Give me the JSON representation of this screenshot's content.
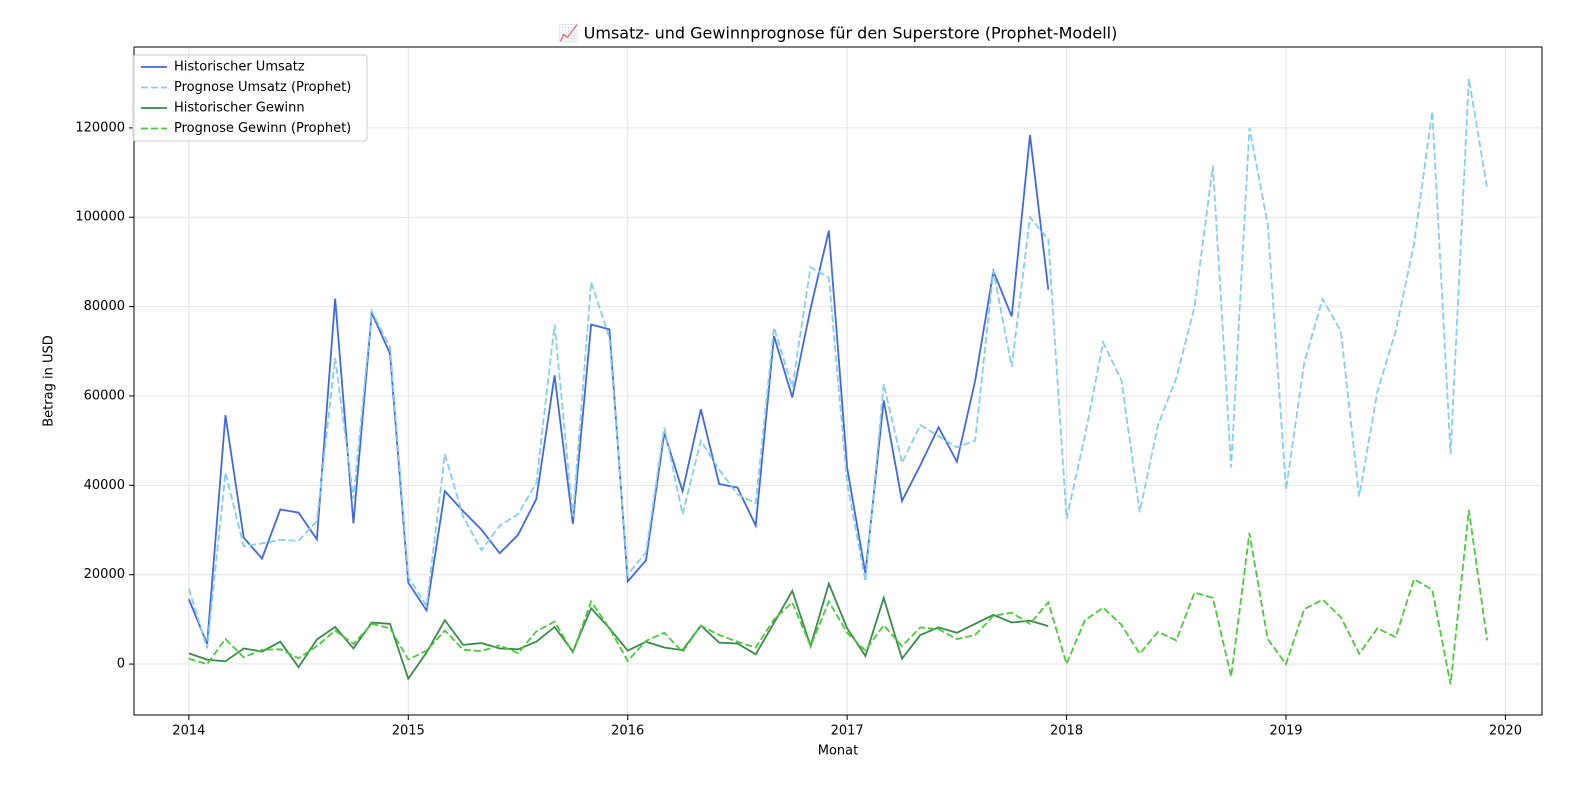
{
  "chart_data": {
    "type": "line",
    "title": "📈 Umsatz- und Gewinnprognose für den Superstore (Prophet-Modell)",
    "x_label": "Monat",
    "y_label": "Betrag in USD",
    "x": [
      "2014-01",
      "2014-02",
      "2014-03",
      "2014-04",
      "2014-05",
      "2014-06",
      "2014-07",
      "2014-08",
      "2014-09",
      "2014-10",
      "2014-11",
      "2014-12",
      "2015-01",
      "2015-02",
      "2015-03",
      "2015-04",
      "2015-05",
      "2015-06",
      "2015-07",
      "2015-08",
      "2015-09",
      "2015-10",
      "2015-11",
      "2015-12",
      "2016-01",
      "2016-02",
      "2016-03",
      "2016-04",
      "2016-05",
      "2016-06",
      "2016-07",
      "2016-08",
      "2016-09",
      "2016-10",
      "2016-11",
      "2016-12",
      "2017-01",
      "2017-02",
      "2017-03",
      "2017-04",
      "2017-05",
      "2017-06",
      "2017-07",
      "2017-08",
      "2017-09",
      "2017-10",
      "2017-11",
      "2017-12",
      "2018-01",
      "2018-02",
      "2018-03",
      "2018-04",
      "2018-05",
      "2018-06",
      "2018-07",
      "2018-08",
      "2018-09",
      "2018-10",
      "2018-11",
      "2018-12",
      "2019-01",
      "2019-02",
      "2019-03",
      "2019-04",
      "2019-05",
      "2019-06",
      "2019-07",
      "2019-08",
      "2019-09",
      "2019-10",
      "2019-11",
      "2019-12"
    ],
    "series": [
      {
        "name": "Historischer Umsatz",
        "color": "#4169e1",
        "linestyle": "solid",
        "values": [
          14500,
          4500,
          55700,
          28300,
          23600,
          34600,
          33900,
          27900,
          81800,
          31500,
          78600,
          69500,
          18200,
          12000,
          38700,
          34200,
          30100,
          24800,
          28900,
          36900,
          64600,
          31400,
          76000,
          74900,
          18500,
          23200,
          51700,
          38700,
          57000,
          40300,
          39500,
          31000,
          73400,
          59700,
          79600,
          97000,
          43900,
          20300,
          59000,
          36500,
          44500,
          53000,
          45300,
          63400,
          87900,
          77800,
          118400,
          83800,
          null,
          null,
          null,
          null,
          null,
          null,
          null,
          null,
          null,
          null,
          null,
          null,
          null,
          null,
          null,
          null,
          null,
          null,
          null,
          null,
          null,
          null,
          null,
          null
        ]
      },
      {
        "name": "Prognose Umsatz (Prophet)",
        "color": "#87ceeb",
        "linestyle": "dashed",
        "values": [
          16900,
          3500,
          42800,
          26400,
          27000,
          27800,
          27600,
          32000,
          68500,
          37000,
          79000,
          71000,
          19500,
          13000,
          47000,
          33000,
          25500,
          31000,
          33500,
          40500,
          76000,
          33000,
          85500,
          73000,
          20000,
          25000,
          53000,
          33500,
          50000,
          43500,
          38000,
          36000,
          75300,
          62000,
          88800,
          86500,
          40500,
          18500,
          62700,
          45000,
          53500,
          51000,
          48500,
          50000,
          88000,
          66500,
          100000,
          95000,
          32500,
          51000,
          72000,
          63500,
          34000,
          53500,
          64000,
          80000,
          111500,
          44000,
          120000,
          98500,
          39000,
          67500,
          81700,
          74500,
          37500,
          61000,
          74500,
          94000,
          123700,
          47000,
          131000,
          106500
        ]
      },
      {
        "name": "Historischer Gewinn",
        "color": "#3a8a4a",
        "linestyle": "solid",
        "values": [
          2400,
          1000,
          600,
          3500,
          2800,
          5000,
          -700,
          5500,
          8300,
          3500,
          9300,
          9000,
          -3300,
          2600,
          9800,
          4300,
          4700,
          3500,
          3300,
          5000,
          8300,
          2800,
          12500,
          8000,
          3000,
          5000,
          3700,
          3100,
          8600,
          4800,
          4600,
          2200,
          9200,
          16400,
          4000,
          18000,
          8000,
          1800,
          14800,
          1200,
          6500,
          8200,
          7000,
          9000,
          11000,
          9300,
          9700,
          8500,
          null,
          null,
          null,
          null,
          null,
          null,
          null,
          null,
          null,
          null,
          null,
          null,
          null,
          null,
          null,
          null,
          null,
          null,
          null,
          null,
          null,
          null,
          null,
          null
        ]
      },
      {
        "name": "Prognose Gewinn (Prophet)",
        "color": "#4cc93c",
        "linestyle": "dashed",
        "values": [
          1200,
          0,
          5600,
          1500,
          3200,
          3300,
          1300,
          4000,
          7500,
          4500,
          9000,
          8000,
          1000,
          3000,
          7500,
          3200,
          2900,
          4200,
          2400,
          7300,
          9500,
          2600,
          14000,
          8000,
          700,
          5200,
          7000,
          2700,
          8600,
          6500,
          5000,
          3700,
          10000,
          13800,
          4000,
          14000,
          7000,
          3000,
          8700,
          4000,
          8200,
          7800,
          5600,
          6500,
          10800,
          11500,
          9000,
          13800,
          0,
          9800,
          12600,
          8800,
          2300,
          7200,
          5300,
          16000,
          14800,
          -2800,
          29300,
          5600,
          0,
          12300,
          14400,
          10500,
          2300,
          8000,
          6000,
          19000,
          16600,
          -4600,
          34500,
          5300
        ]
      }
    ],
    "xlim": [
      "2013-10",
      "2020-03"
    ],
    "xticks": [
      {
        "value": "2014-01",
        "label": "2014"
      },
      {
        "value": "2015-01",
        "label": "2015"
      },
      {
        "value": "2016-01",
        "label": "2016"
      },
      {
        "value": "2017-01",
        "label": "2017"
      },
      {
        "value": "2018-01",
        "label": "2018"
      },
      {
        "value": "2019-01",
        "label": "2019"
      },
      {
        "value": "2020-01",
        "label": "2020"
      }
    ],
    "ylim": [
      -11400,
      138100
    ],
    "yticks": [
      0,
      20000,
      40000,
      60000,
      80000,
      100000,
      120000
    ],
    "grid": true,
    "legend": "upper left"
  }
}
